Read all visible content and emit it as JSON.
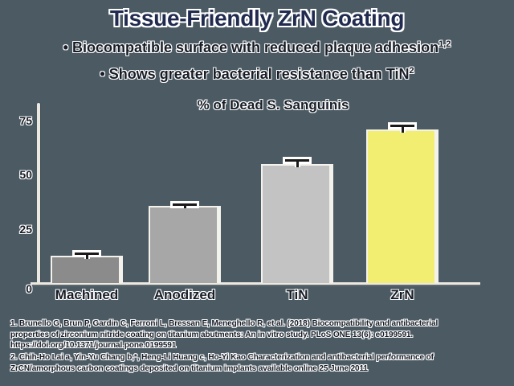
{
  "slide": {
    "title": "Tissue-Friendly ZrN Coating",
    "bullet_char": "•",
    "bullets": [
      {
        "text": "Biocompatible surface with reduced plaque adhesion",
        "sup": "1,2"
      },
      {
        "text": "Shows greater bacterial resistance than TiN",
        "sup": "2"
      }
    ]
  },
  "chart_data": {
    "type": "bar",
    "title": "% of Dead S. Sanguinis",
    "categories": [
      "Machined",
      "Anodized",
      "TiN",
      "ZrN"
    ],
    "values": [
      12,
      35,
      54,
      70
    ],
    "error_bars": [
      2,
      1.5,
      3,
      3
    ],
    "xlabel": "",
    "ylabel": "",
    "ylim": [
      0,
      80
    ],
    "yticks": [
      0,
      25,
      50,
      75
    ],
    "grid": false,
    "legend_position": "none",
    "bar_colors": [
      "#8b8b8b",
      "#a7a7a7",
      "#c3c3c3",
      "#f2ee72"
    ]
  },
  "footnotes": [
    {
      "lines": [
        "1. Brunello G, Brun P, Gardin C, Ferroni L, Bressan E, Meneghello R, et al. (2018) Biocompatibility and antibacterial",
        "properties of zirconium nitride coating on titanium abutments: An in vitro study. PLoS ONE 13(6): e0199591.",
        "https://doi.org/10.1371/journal.pone.0199591"
      ]
    },
    {
      "lines": [
        "2. Chih-Ho Lai a, Yin-Yu Chang b,*, Heng-Li Huang c, Ho-Yi Kao Characterization and antibacterial performance of",
        "ZrCN/amorphous carbon coatings deposited on titanium implants available online 25 June 2011"
      ]
    }
  ],
  "colors": {
    "background": "#4c5b63",
    "title_text": "#202b4f",
    "body_text": "#171c26",
    "axis_line": "#ece9e2",
    "text_halo": "#ffffff",
    "error_bar": "#1a1a1a"
  }
}
